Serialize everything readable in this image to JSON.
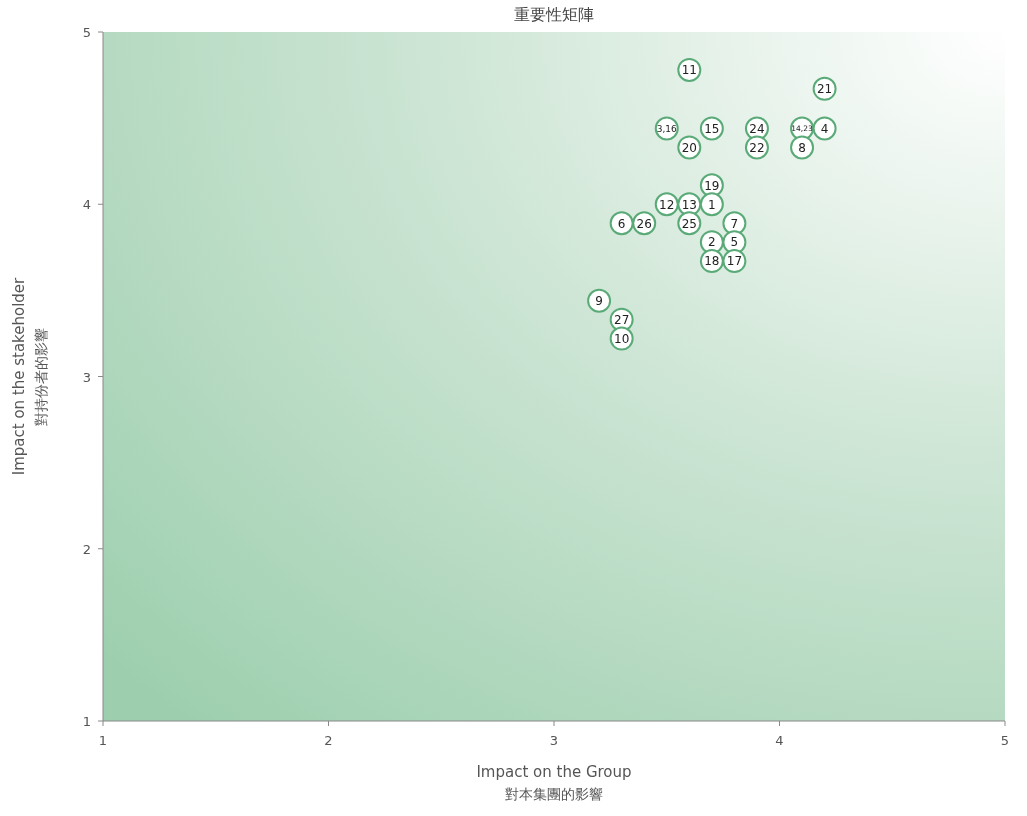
{
  "chart_data": {
    "type": "scatter",
    "title": "重要性矩陣",
    "xlabel": "Impact on the Group\n對本集團的影響",
    "ylabel": "Impact on the stakeholder\n對持份者的影響",
    "xlim": [
      1,
      5
    ],
    "ylim": [
      1,
      5
    ],
    "xticks": [
      1,
      2,
      3,
      4,
      5
    ],
    "yticks": [
      1,
      2,
      3,
      4,
      5
    ],
    "marker": "circle",
    "series": [
      {
        "color": "#5aaa78",
        "x": [
          3.6,
          4.2,
          3.5,
          3.7,
          3.9,
          4.1,
          4.2,
          3.6,
          3.9,
          4.1,
          3.7,
          3.5,
          3.6,
          3.7,
          3.3,
          3.4,
          3.6,
          3.8,
          3.7,
          3.8,
          3.7,
          3.8,
          3.2,
          3.3,
          3.3
        ],
        "values": [
          4.78,
          4.67,
          4.44,
          4.44,
          4.44,
          4.44,
          4.44,
          4.33,
          4.33,
          4.33,
          4.11,
          4.0,
          4.0,
          4.0,
          3.89,
          3.89,
          3.89,
          3.89,
          3.78,
          3.78,
          3.67,
          3.67,
          3.44,
          3.33,
          3.22
        ]
      }
    ],
    "annotations": [
      {
        "text": "11",
        "x": 3.6,
        "y": 4.78
      },
      {
        "text": "21",
        "x": 4.2,
        "y": 4.67
      },
      {
        "text": "3,16",
        "x": 3.5,
        "y": 4.44
      },
      {
        "text": "15",
        "x": 3.7,
        "y": 4.44
      },
      {
        "text": "24",
        "x": 3.9,
        "y": 4.44
      },
      {
        "text": "14,23",
        "x": 4.1,
        "y": 4.44
      },
      {
        "text": "4",
        "x": 4.2,
        "y": 4.44
      },
      {
        "text": "20",
        "x": 3.6,
        "y": 4.33
      },
      {
        "text": "22",
        "x": 3.9,
        "y": 4.33
      },
      {
        "text": "8",
        "x": 4.1,
        "y": 4.33
      },
      {
        "text": "19",
        "x": 3.7,
        "y": 4.11
      },
      {
        "text": "12",
        "x": 3.5,
        "y": 4.0
      },
      {
        "text": "13",
        "x": 3.6,
        "y": 4.0
      },
      {
        "text": "1",
        "x": 3.7,
        "y": 4.0
      },
      {
        "text": "6",
        "x": 3.3,
        "y": 3.89
      },
      {
        "text": "26",
        "x": 3.4,
        "y": 3.89
      },
      {
        "text": "25",
        "x": 3.6,
        "y": 3.89
      },
      {
        "text": "7",
        "x": 3.8,
        "y": 3.89
      },
      {
        "text": "2",
        "x": 3.7,
        "y": 3.78
      },
      {
        "text": "5",
        "x": 3.8,
        "y": 3.78
      },
      {
        "text": "18",
        "x": 3.7,
        "y": 3.67
      },
      {
        "text": "17",
        "x": 3.8,
        "y": 3.67
      },
      {
        "text": "9",
        "x": 3.2,
        "y": 3.44
      },
      {
        "text": "27",
        "x": 3.3,
        "y": 3.33
      },
      {
        "text": "10",
        "x": 3.3,
        "y": 3.22
      }
    ]
  }
}
